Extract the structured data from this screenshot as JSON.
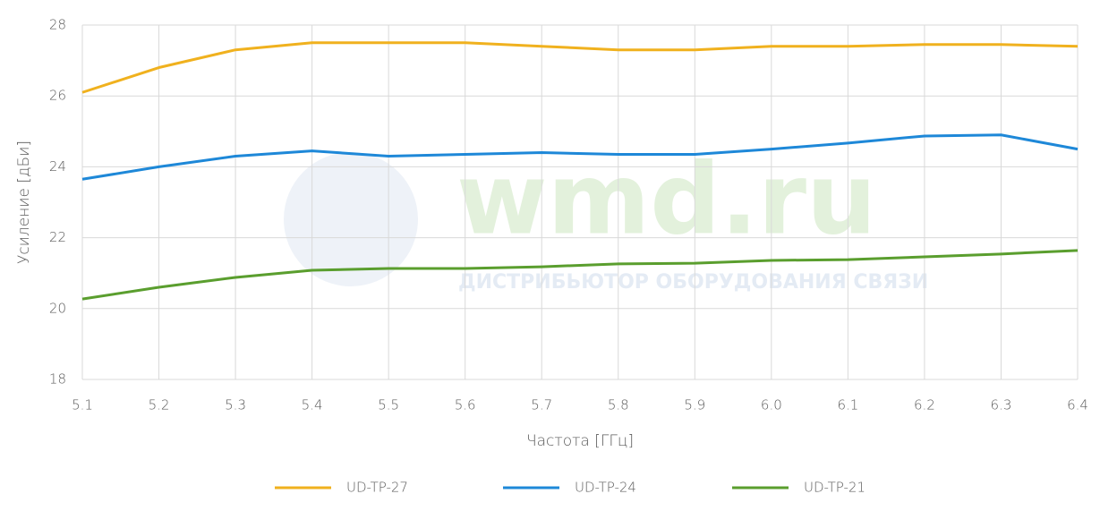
{
  "chart_data": {
    "type": "line",
    "watermark": "wmd.ru",
    "watermark_subtitle": "ДИСТРИБЬЮТОР ОБОРУДОВАНИЯ СВЯЗИ",
    "x_label": "Частота [ГГц]",
    "y_label": "Усиление [дБи]",
    "x": [
      5.1,
      5.2,
      5.3,
      5.4,
      5.5,
      5.6,
      5.7,
      5.8,
      5.9,
      6.0,
      6.1,
      6.2,
      6.3,
      6.4
    ],
    "xlim": [
      5.1,
      6.4
    ],
    "xticks": [
      5.1,
      5.2,
      5.3,
      5.4,
      5.5,
      5.6,
      5.7,
      5.8,
      5.9,
      {
        "value": 6,
        "label": "6.0"
      },
      6.1,
      6.2,
      6.3,
      6.4
    ],
    "ylim": [
      18,
      28
    ],
    "yticks": [
      18,
      20,
      22,
      24,
      26,
      28
    ],
    "grid": true,
    "legend": "bottom",
    "series": [
      {
        "name": "UD-TP-27",
        "color": "#f0b11e",
        "values": [
          26.1,
          26.8,
          27.3,
          27.5,
          27.5,
          27.5,
          27.4,
          27.3,
          27.3,
          27.4,
          27.4,
          27.45,
          27.45,
          27.4
        ]
      },
      {
        "name": "UD-TP-24",
        "color": "#1e88d8",
        "values": [
          23.65,
          24.0,
          24.3,
          24.45,
          24.3,
          24.35,
          24.4,
          24.35,
          24.35,
          24.5,
          24.67,
          24.87,
          24.9,
          24.5
        ]
      },
      {
        "name": "UD-TP-21",
        "color": "#5a9e2e",
        "values": [
          20.27,
          20.6,
          20.88,
          21.08,
          21.13,
          21.13,
          21.18,
          21.26,
          21.28,
          21.36,
          21.38,
          21.46,
          21.54,
          21.64
        ]
      }
    ]
  }
}
